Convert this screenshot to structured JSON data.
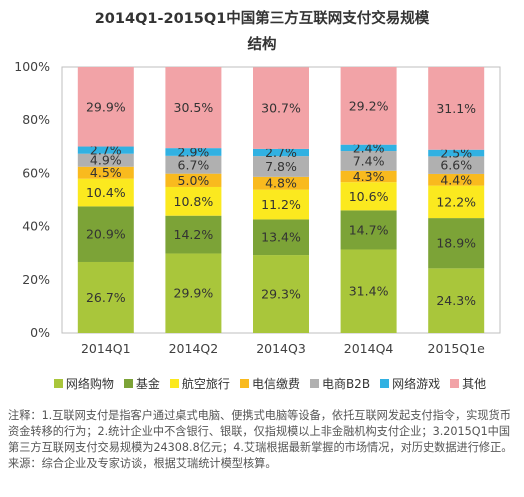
{
  "title": {
    "line1": "2014Q1-2015Q1中国第三方互联网支付交易规模",
    "line2": "结构"
  },
  "chart_data": {
    "type": "bar",
    "stacked": true,
    "categories": [
      "2014Q1",
      "2014Q2",
      "2014Q3",
      "2014Q4",
      "2015Q1e"
    ],
    "ylim": [
      0,
      100
    ],
    "yticks": [
      "0%",
      "20%",
      "40%",
      "60%",
      "80%",
      "100%"
    ],
    "series": [
      {
        "name": "网络购物",
        "color": "#a9c63b",
        "values": [
          26.7,
          29.9,
          29.3,
          31.4,
          24.3
        ],
        "labels": [
          "26.7%",
          "29.9%",
          "29.3%",
          "31.4%",
          "24.3%"
        ]
      },
      {
        "name": "基金",
        "color": "#7ca337",
        "values": [
          20.9,
          14.2,
          13.4,
          14.7,
          18.9
        ],
        "labels": [
          "20.9%",
          "14.2%",
          "13.4%",
          "14.7%",
          "18.9%"
        ]
      },
      {
        "name": "航空旅行",
        "color": "#fbe91f",
        "values": [
          10.4,
          10.8,
          11.2,
          10.6,
          12.2
        ],
        "labels": [
          "10.4%",
          "10.8%",
          "11.2%",
          "10.6%",
          "12.2%"
        ]
      },
      {
        "name": "电信缴费",
        "color": "#f9ba1e",
        "values": [
          4.5,
          5.0,
          4.8,
          4.3,
          4.4
        ],
        "labels": [
          "4.5%",
          "5.0%",
          "4.8%",
          "4.3%",
          "4.4%"
        ]
      },
      {
        "name": "电商B2B",
        "color": "#b0b0b0",
        "values": [
          4.9,
          6.7,
          7.8,
          7.4,
          6.6
        ],
        "labels": [
          "4.9%",
          "6.7%",
          "7.8%",
          "7.4%",
          "6.6%"
        ]
      },
      {
        "name": "网络游戏",
        "color": "#31b1e2",
        "values": [
          2.7,
          2.9,
          2.7,
          2.4,
          2.5
        ],
        "labels": [
          "2.7%",
          "2.9%",
          "2.7%",
          "2.4%",
          "2.5%"
        ]
      },
      {
        "name": "其他",
        "color": "#f2a3a7",
        "values": [
          29.9,
          30.5,
          30.7,
          29.2,
          31.1
        ],
        "labels": [
          "29.9%",
          "30.5%",
          "30.7%",
          "29.2%",
          "31.1%"
        ]
      }
    ],
    "grid": false,
    "legend": "bottom"
  },
  "notes": {
    "line1": "注释：1.互联网支付是指客户通过桌式电脑、便携式电脑等设备，依托互联网发起支付指令，实现货币资金转移的行为；2.统计企业中不含银行、银联，仅指规模以上非金融机构支付企业；3.2015Q1中国第三方互联网支付交易规模为24308.8亿元；4.艾瑞根据最新掌握的市场情况，对历史数据进行修正。",
    "line2": "来源：综合企业及专家访谈，根据艾瑞统计模型核算。"
  }
}
